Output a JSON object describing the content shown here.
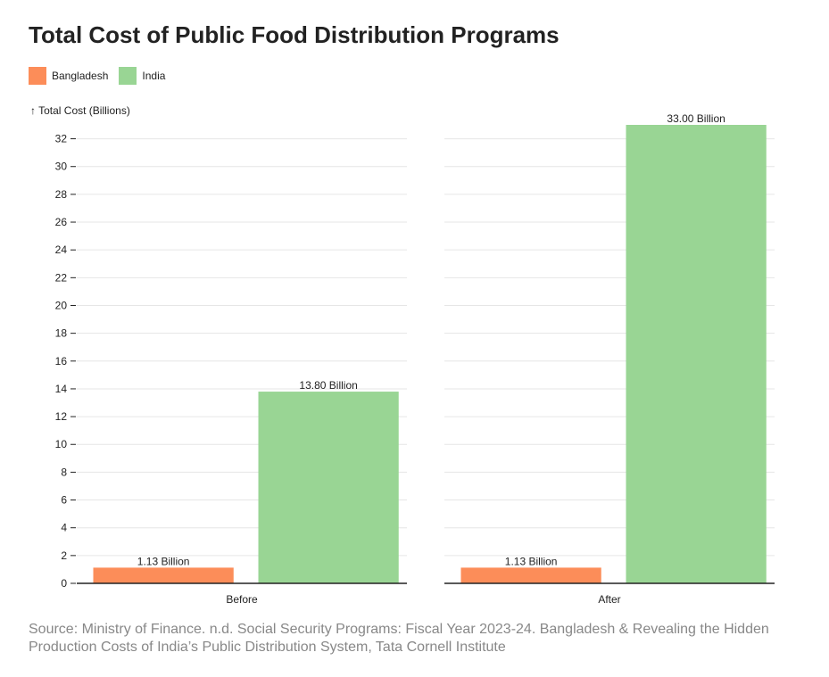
{
  "title": "Total Cost of Public Food Distribution Programs",
  "source": "Source: Ministry of Finance. n.d. Social Security Programs: Fiscal Year 2023-24. Bangladesh & Revealing the Hidden Production Costs of India’s Public Distribution System, Tata Cornell Institute",
  "legend": [
    {
      "label": "Bangladesh",
      "color": "#fc8d59"
    },
    {
      "label": "India",
      "color": "#99d594"
    }
  ],
  "chart_data": {
    "type": "bar",
    "title": "Total Cost of Public Food Distribution Programs",
    "ylabel": "↑ Total Cost (Billions)",
    "ylim": [
      0,
      33
    ],
    "yticks": [
      0,
      2,
      4,
      6,
      8,
      10,
      12,
      14,
      16,
      18,
      20,
      22,
      24,
      26,
      28,
      30,
      32
    ],
    "grid": true,
    "legend_position": "top-left",
    "facets": [
      "Before",
      "After"
    ],
    "series": [
      {
        "name": "Bangladesh",
        "color": "#fc8d59",
        "values": [
          1.13,
          1.13
        ],
        "labels": [
          "1.13 Billion",
          "1.13 Billion"
        ]
      },
      {
        "name": "India",
        "color": "#99d594",
        "values": [
          13.8,
          33.0
        ],
        "labels": [
          "13.80 Billion",
          "33.00 Billion"
        ]
      }
    ]
  }
}
